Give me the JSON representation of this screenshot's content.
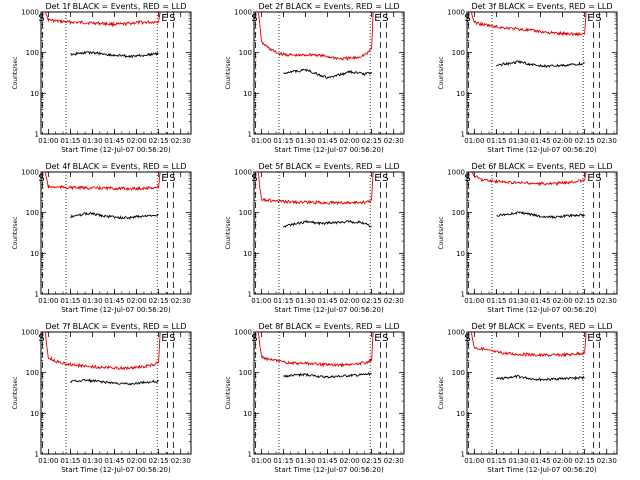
{
  "panels": [
    {
      "title": "Det 1f BLACK = Events, RED = LLD"
    },
    {
      "title": "Det 2f BLACK = Events, RED = LLD"
    },
    {
      "title": "Det 3f BLACK = Events, RED = LLD"
    },
    {
      "title": "Det 4f BLACK = Events, RED = LLD"
    },
    {
      "title": "Det 5f BLACK = Events, RED = LLD"
    },
    {
      "title": "Det 6f BLACK = Events, RED = LLD"
    },
    {
      "title": "Det 7f BLACK = Events, RED = LLD"
    },
    {
      "title": "Det 8f BLACK = Events, RED = LLD"
    },
    {
      "title": "Det 9f BLACK = Events, RED = LLD"
    }
  ],
  "colors": {
    "events": "#000000",
    "lld": "#e00000"
  },
  "chart_data": {
    "type": "line",
    "layout": "3x3 small multiples",
    "xlabel": "Start Time (12-Jul-07 00:56:20)",
    "ylabel": "Counts/sec",
    "yscale": "log",
    "ylim": [
      1,
      1000
    ],
    "y_ticks": [
      1,
      10,
      100,
      1000
    ],
    "x_ticks": [
      "01:00",
      "01:15",
      "01:30",
      "01:45",
      "02:00",
      "02:15",
      "02:30"
    ],
    "markers": {
      "start": "S",
      "end": "E"
    },
    "legend": "in titles",
    "series_names": [
      "Events",
      "LLD"
    ],
    "panels": [
      {
        "events": [
          [
            "01:15",
            90
          ],
          [
            "01:20",
            95
          ],
          [
            "01:25",
            100
          ],
          [
            "01:30",
            100
          ],
          [
            "01:35",
            95
          ],
          [
            "01:40",
            90
          ],
          [
            "01:45",
            85
          ],
          [
            "01:50",
            85
          ],
          [
            "01:55",
            80
          ],
          [
            "02:00",
            85
          ],
          [
            "02:05",
            85
          ],
          [
            "02:10",
            90
          ],
          [
            "02:15",
            95
          ]
        ],
        "lld": [
          [
            "00:58",
            1000
          ],
          [
            "00:59",
            750
          ],
          [
            "01:00",
            650
          ],
          [
            "01:05",
            600
          ],
          [
            "01:15",
            560
          ],
          [
            "01:30",
            540
          ],
          [
            "01:45",
            500
          ],
          [
            "01:50",
            500
          ],
          [
            "02:00",
            550
          ],
          [
            "02:10",
            560
          ],
          [
            "02:15",
            580
          ],
          [
            "02:16",
            1000
          ]
        ]
      },
      {
        "events": [
          [
            "01:15",
            30
          ],
          [
            "01:20",
            35
          ],
          [
            "01:25",
            35
          ],
          [
            "01:30",
            38
          ],
          [
            "01:35",
            33
          ],
          [
            "01:40",
            28
          ],
          [
            "01:45",
            24
          ],
          [
            "01:50",
            26
          ],
          [
            "01:55",
            30
          ],
          [
            "02:00",
            34
          ],
          [
            "02:05",
            32
          ],
          [
            "02:10",
            30
          ],
          [
            "02:15",
            33
          ]
        ],
        "lld": [
          [
            "00:58",
            1000
          ],
          [
            "00:59",
            500
          ],
          [
            "01:00",
            180
          ],
          [
            "01:05",
            130
          ],
          [
            "01:10",
            100
          ],
          [
            "01:15",
            90
          ],
          [
            "01:25",
            85
          ],
          [
            "01:35",
            90
          ],
          [
            "01:45",
            80
          ],
          [
            "01:55",
            70
          ],
          [
            "02:05",
            75
          ],
          [
            "02:12",
            95
          ],
          [
            "02:15",
            130
          ],
          [
            "02:16",
            1000
          ]
        ]
      },
      {
        "events": [
          [
            "01:15",
            50
          ],
          [
            "01:20",
            52
          ],
          [
            "01:25",
            55
          ],
          [
            "01:30",
            60
          ],
          [
            "01:35",
            55
          ],
          [
            "01:40",
            50
          ],
          [
            "01:45",
            48
          ],
          [
            "01:50",
            46
          ],
          [
            "01:55",
            47
          ],
          [
            "02:00",
            48
          ],
          [
            "02:05",
            50
          ],
          [
            "02:10",
            52
          ],
          [
            "02:15",
            55
          ]
        ],
        "lld": [
          [
            "00:58",
            1000
          ],
          [
            "00:59",
            700
          ],
          [
            "01:00",
            560
          ],
          [
            "01:05",
            500
          ],
          [
            "01:15",
            430
          ],
          [
            "01:30",
            380
          ],
          [
            "01:45",
            330
          ],
          [
            "01:55",
            300
          ],
          [
            "02:05",
            290
          ],
          [
            "02:12",
            285
          ],
          [
            "02:15",
            290
          ],
          [
            "02:16",
            1000
          ]
        ]
      },
      {
        "events": [
          [
            "01:15",
            80
          ],
          [
            "01:20",
            85
          ],
          [
            "01:25",
            95
          ],
          [
            "01:30",
            95
          ],
          [
            "01:35",
            85
          ],
          [
            "01:40",
            80
          ],
          [
            "01:45",
            78
          ],
          [
            "01:50",
            75
          ],
          [
            "01:55",
            75
          ],
          [
            "02:00",
            80
          ],
          [
            "02:05",
            82
          ],
          [
            "02:10",
            85
          ],
          [
            "02:15",
            90
          ]
        ],
        "lld": [
          [
            "00:58",
            1000
          ],
          [
            "00:59",
            600
          ],
          [
            "01:00",
            430
          ],
          [
            "01:10",
            420
          ],
          [
            "01:20",
            410
          ],
          [
            "01:30",
            400
          ],
          [
            "01:40",
            400
          ],
          [
            "01:50",
            390
          ],
          [
            "02:00",
            390
          ],
          [
            "02:10",
            410
          ],
          [
            "02:15",
            420
          ],
          [
            "02:16",
            1000
          ]
        ]
      },
      {
        "events": [
          [
            "01:15",
            45
          ],
          [
            "01:20",
            50
          ],
          [
            "01:25",
            55
          ],
          [
            "01:30",
            60
          ],
          [
            "01:35",
            58
          ],
          [
            "01:40",
            55
          ],
          [
            "01:45",
            55
          ],
          [
            "01:50",
            57
          ],
          [
            "01:55",
            58
          ],
          [
            "02:00",
            60
          ],
          [
            "02:05",
            58
          ],
          [
            "02:10",
            55
          ],
          [
            "02:15",
            45
          ]
        ],
        "lld": [
          [
            "00:58",
            1000
          ],
          [
            "00:59",
            400
          ],
          [
            "01:00",
            220
          ],
          [
            "01:05",
            200
          ],
          [
            "01:15",
            185
          ],
          [
            "01:30",
            180
          ],
          [
            "01:45",
            175
          ],
          [
            "02:00",
            175
          ],
          [
            "02:10",
            180
          ],
          [
            "02:14",
            190
          ],
          [
            "02:15",
            220
          ],
          [
            "02:16",
            1000
          ]
        ]
      },
      {
        "events": [
          [
            "01:15",
            85
          ],
          [
            "01:20",
            90
          ],
          [
            "01:25",
            95
          ],
          [
            "01:30",
            100
          ],
          [
            "01:35",
            95
          ],
          [
            "01:40",
            88
          ],
          [
            "01:45",
            80
          ],
          [
            "01:50",
            78
          ],
          [
            "01:55",
            78
          ],
          [
            "02:00",
            82
          ],
          [
            "02:05",
            85
          ],
          [
            "02:10",
            86
          ],
          [
            "02:15",
            88
          ]
        ],
        "lld": [
          [
            "00:58",
            1000
          ],
          [
            "00:59",
            900
          ],
          [
            "01:00",
            800
          ],
          [
            "01:05",
            650
          ],
          [
            "01:15",
            580
          ],
          [
            "01:30",
            540
          ],
          [
            "01:45",
            510
          ],
          [
            "01:55",
            520
          ],
          [
            "02:05",
            560
          ],
          [
            "02:12",
            600
          ],
          [
            "02:15",
            620
          ],
          [
            "02:16",
            1000
          ]
        ]
      },
      {
        "events": [
          [
            "01:15",
            60
          ],
          [
            "01:20",
            62
          ],
          [
            "01:25",
            65
          ],
          [
            "01:30",
            62
          ],
          [
            "01:35",
            60
          ],
          [
            "01:40",
            58
          ],
          [
            "01:45",
            55
          ],
          [
            "01:50",
            53
          ],
          [
            "01:55",
            52
          ],
          [
            "02:00",
            55
          ],
          [
            "02:05",
            58
          ],
          [
            "02:10",
            60
          ],
          [
            "02:15",
            62
          ]
        ],
        "lld": [
          [
            "00:58",
            1000
          ],
          [
            "00:59",
            400
          ],
          [
            "01:00",
            240
          ],
          [
            "01:05",
            190
          ],
          [
            "01:15",
            160
          ],
          [
            "01:25",
            145
          ],
          [
            "01:35",
            135
          ],
          [
            "01:45",
            130
          ],
          [
            "01:55",
            130
          ],
          [
            "02:05",
            140
          ],
          [
            "02:12",
            160
          ],
          [
            "02:15",
            180
          ],
          [
            "02:16",
            1000
          ]
        ]
      },
      {
        "events": [
          [
            "01:15",
            80
          ],
          [
            "01:20",
            85
          ],
          [
            "01:25",
            88
          ],
          [
            "01:30",
            90
          ],
          [
            "01:35",
            85
          ],
          [
            "01:40",
            80
          ],
          [
            "01:45",
            78
          ],
          [
            "01:50",
            80
          ],
          [
            "01:55",
            82
          ],
          [
            "02:00",
            85
          ],
          [
            "02:05",
            86
          ],
          [
            "02:10",
            90
          ],
          [
            "02:15",
            95
          ]
        ],
        "lld": [
          [
            "00:58",
            1000
          ],
          [
            "00:59",
            450
          ],
          [
            "01:00",
            250
          ],
          [
            "01:05",
            210
          ],
          [
            "01:15",
            180
          ],
          [
            "01:25",
            170
          ],
          [
            "01:35",
            165
          ],
          [
            "01:45",
            155
          ],
          [
            "01:55",
            155
          ],
          [
            "02:05",
            165
          ],
          [
            "02:12",
            180
          ],
          [
            "02:15",
            200
          ],
          [
            "02:16",
            1000
          ]
        ]
      },
      {
        "events": [
          [
            "01:15",
            70
          ],
          [
            "01:20",
            72
          ],
          [
            "01:25",
            78
          ],
          [
            "01:30",
            80
          ],
          [
            "01:35",
            75
          ],
          [
            "01:40",
            70
          ],
          [
            "01:45",
            68
          ],
          [
            "01:50",
            68
          ],
          [
            "01:55",
            70
          ],
          [
            "02:00",
            72
          ],
          [
            "02:05",
            72
          ],
          [
            "02:10",
            74
          ],
          [
            "02:15",
            76
          ]
        ],
        "lld": [
          [
            "00:58",
            1000
          ],
          [
            "00:59",
            600
          ],
          [
            "01:00",
            420
          ],
          [
            "01:05",
            380
          ],
          [
            "01:15",
            320
          ],
          [
            "01:25",
            290
          ],
          [
            "01:35",
            280
          ],
          [
            "01:45",
            270
          ],
          [
            "01:55",
            270
          ],
          [
            "02:05",
            280
          ],
          [
            "02:12",
            300
          ],
          [
            "02:15",
            310
          ],
          [
            "02:16",
            1000
          ]
        ]
      }
    ]
  }
}
